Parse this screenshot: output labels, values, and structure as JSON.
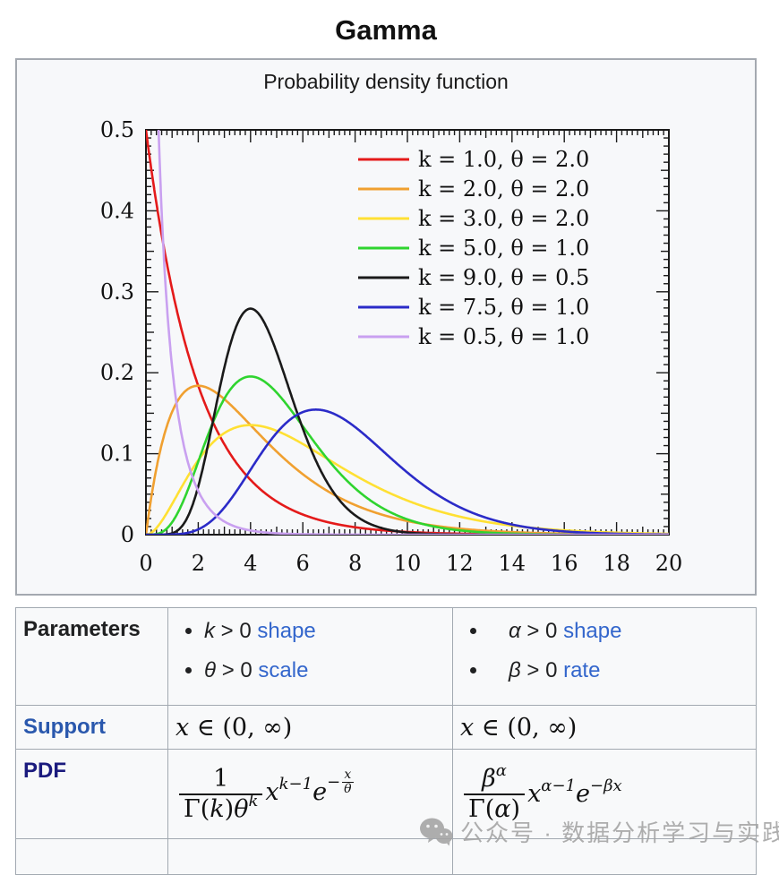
{
  "title": "Gamma",
  "image_box": {
    "caption": "Probability density function"
  },
  "chart_data": {
    "type": "line",
    "title": "Probability density function",
    "xlabel": "",
    "ylabel": "",
    "xlim": [
      0,
      20
    ],
    "ylim": [
      0,
      0.5
    ],
    "grid": false,
    "legend_position": "upper right",
    "x_tick_labels": [
      "0",
      "2",
      "4",
      "6",
      "8",
      "10",
      "12",
      "14",
      "16",
      "18",
      "20"
    ],
    "y_tick_labels": [
      "0",
      "0.1",
      "0.2",
      "0.3",
      "0.4",
      "0.5"
    ],
    "function": "gamma_pdf f(x)=x^(k-1)·e^(-x/theta)/(Gamma(k)·theta^k)",
    "series": [
      {
        "label": "k = 1.0, θ = 2.0",
        "k": 1.0,
        "theta": 2.0,
        "color": "#e41a1a"
      },
      {
        "label": "k = 2.0, θ = 2.0",
        "k": 2.0,
        "theta": 2.0,
        "color": "#f0a030"
      },
      {
        "label": "k = 3.0, θ = 2.0",
        "k": 3.0,
        "theta": 2.0,
        "color": "#ffe033"
      },
      {
        "label": "k = 5.0, θ = 1.0",
        "k": 5.0,
        "theta": 1.0,
        "color": "#2fd42f"
      },
      {
        "label": "k = 9.0, θ = 0.5",
        "k": 9.0,
        "theta": 0.5,
        "color": "#1a1a1a"
      },
      {
        "label": "k = 7.5, θ = 1.0",
        "k": 7.5,
        "theta": 1.0,
        "color": "#2b2bc8"
      },
      {
        "label": "k = 0.5, θ = 1.0",
        "k": 0.5,
        "theta": 1.0,
        "color": "#c9a0f0"
      }
    ]
  },
  "table": {
    "parameters": {
      "label": "Parameters",
      "left": [
        {
          "var": "k",
          "cond": " > 0 ",
          "link": "shape"
        },
        {
          "var": "θ",
          "cond": " > 0 ",
          "link": "scale"
        }
      ],
      "right": [
        {
          "var": "α",
          "cond": " > 0 ",
          "link": "shape"
        },
        {
          "var": "β",
          "cond": " > 0 ",
          "link": "rate"
        }
      ]
    },
    "support": {
      "label": "Support",
      "left": {
        "var": "x",
        "rest": " ∈ (0, ∞)"
      },
      "right": {
        "var": "x",
        "rest": " ∈ (0, ∞)"
      }
    },
    "pdf": {
      "label": "PDF",
      "left": {
        "num": "1",
        "den_prefix": "Γ(",
        "den_var": "k",
        "den_close": ")",
        "den_theta": "θ",
        "den_sup": "k",
        "base": "x",
        "base_sup": "k−1",
        "e": "e",
        "e_sign": "−",
        "e_num": "x",
        "e_den": "θ"
      },
      "right": {
        "num_base": "β",
        "num_sup": "α",
        "den_prefix": "Γ(",
        "den_var": "α",
        "den_close": ")",
        "base": "x",
        "base_sup": "α−1",
        "e": "e",
        "e_sup": "−βx"
      }
    }
  },
  "watermark": {
    "text": "公众号 · 数据分析学习与实践"
  }
}
